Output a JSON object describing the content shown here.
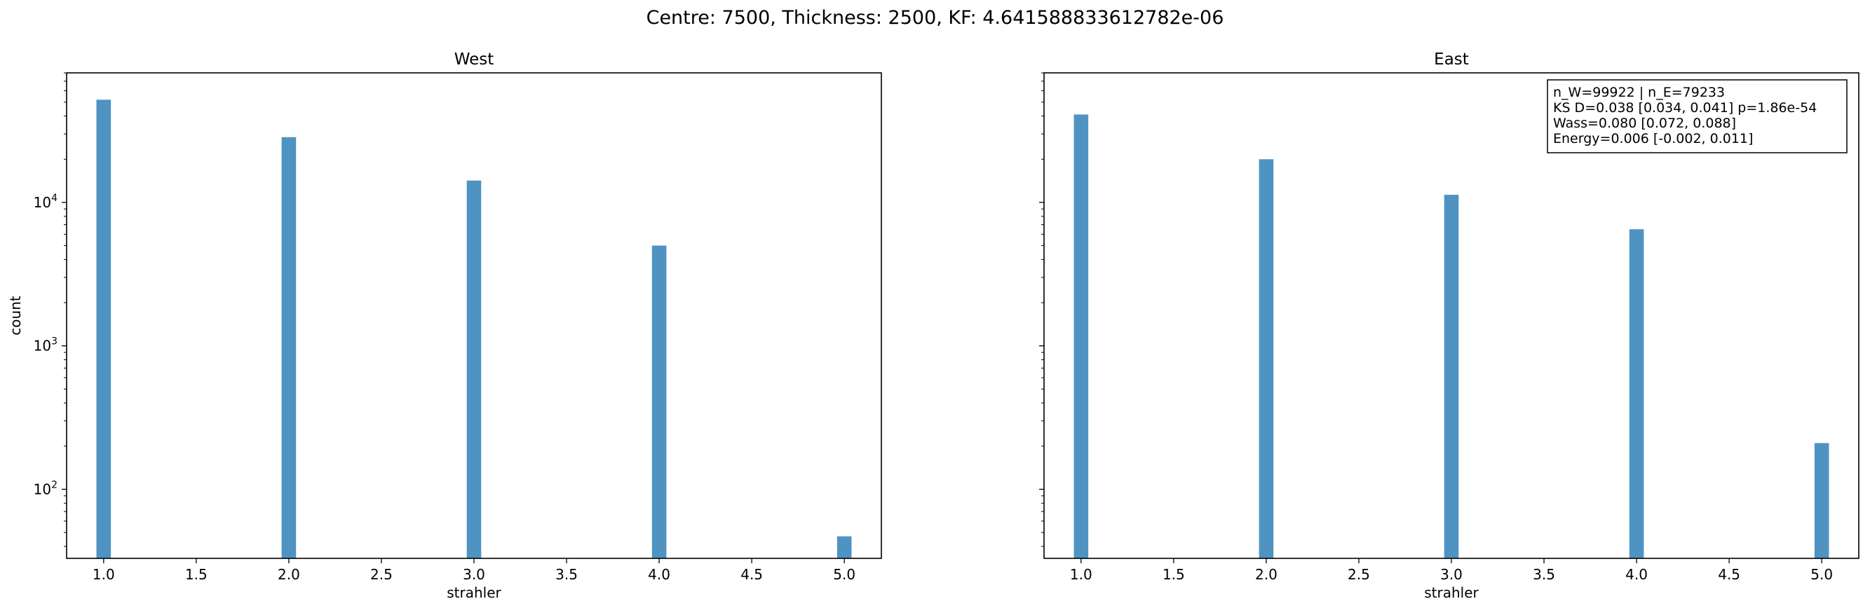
{
  "figure": {
    "suptitle": "Centre: 7500, Thickness: 2500, KF: 4.641588833612782e-06"
  },
  "colors": {
    "bar": "#4f93c3",
    "axis": "#000000",
    "background": "#ffffff"
  },
  "chart_data": [
    {
      "type": "bar",
      "title": "West",
      "xlabel": "strahler",
      "ylabel": "count",
      "yscale": "log",
      "xlim": [
        0.8,
        5.2
      ],
      "ylim": [
        33,
        80000
      ],
      "xticks": [
        "1.0",
        "1.5",
        "2.0",
        "2.5",
        "3.0",
        "3.5",
        "4.0",
        "4.5",
        "5.0"
      ],
      "yticks": [
        "10^2",
        "10^3",
        "10^4"
      ],
      "categories": [
        1,
        2,
        3,
        4,
        5
      ],
      "values": [
        52000,
        28500,
        14200,
        5000,
        47
      ],
      "grid": false
    },
    {
      "type": "bar",
      "title": "East",
      "xlabel": "strahler",
      "ylabel": "",
      "yscale": "log",
      "xlim": [
        0.8,
        5.2
      ],
      "ylim": [
        33,
        80000
      ],
      "xticks": [
        "1.0",
        "1.5",
        "2.0",
        "2.5",
        "3.0",
        "3.5",
        "4.0",
        "4.5",
        "5.0"
      ],
      "yticks": [],
      "categories": [
        1,
        2,
        3,
        4,
        5
      ],
      "values": [
        41000,
        20000,
        11300,
        6500,
        210
      ],
      "grid": false,
      "annotation": [
        "n_W=99922 | n_E=79233",
        "KS D=0.038 [0.034, 0.041]  p=1.86e-54",
        "Wass=0.080 [0.072, 0.088]",
        "Energy=0.006 [-0.002, 0.011]"
      ]
    }
  ]
}
